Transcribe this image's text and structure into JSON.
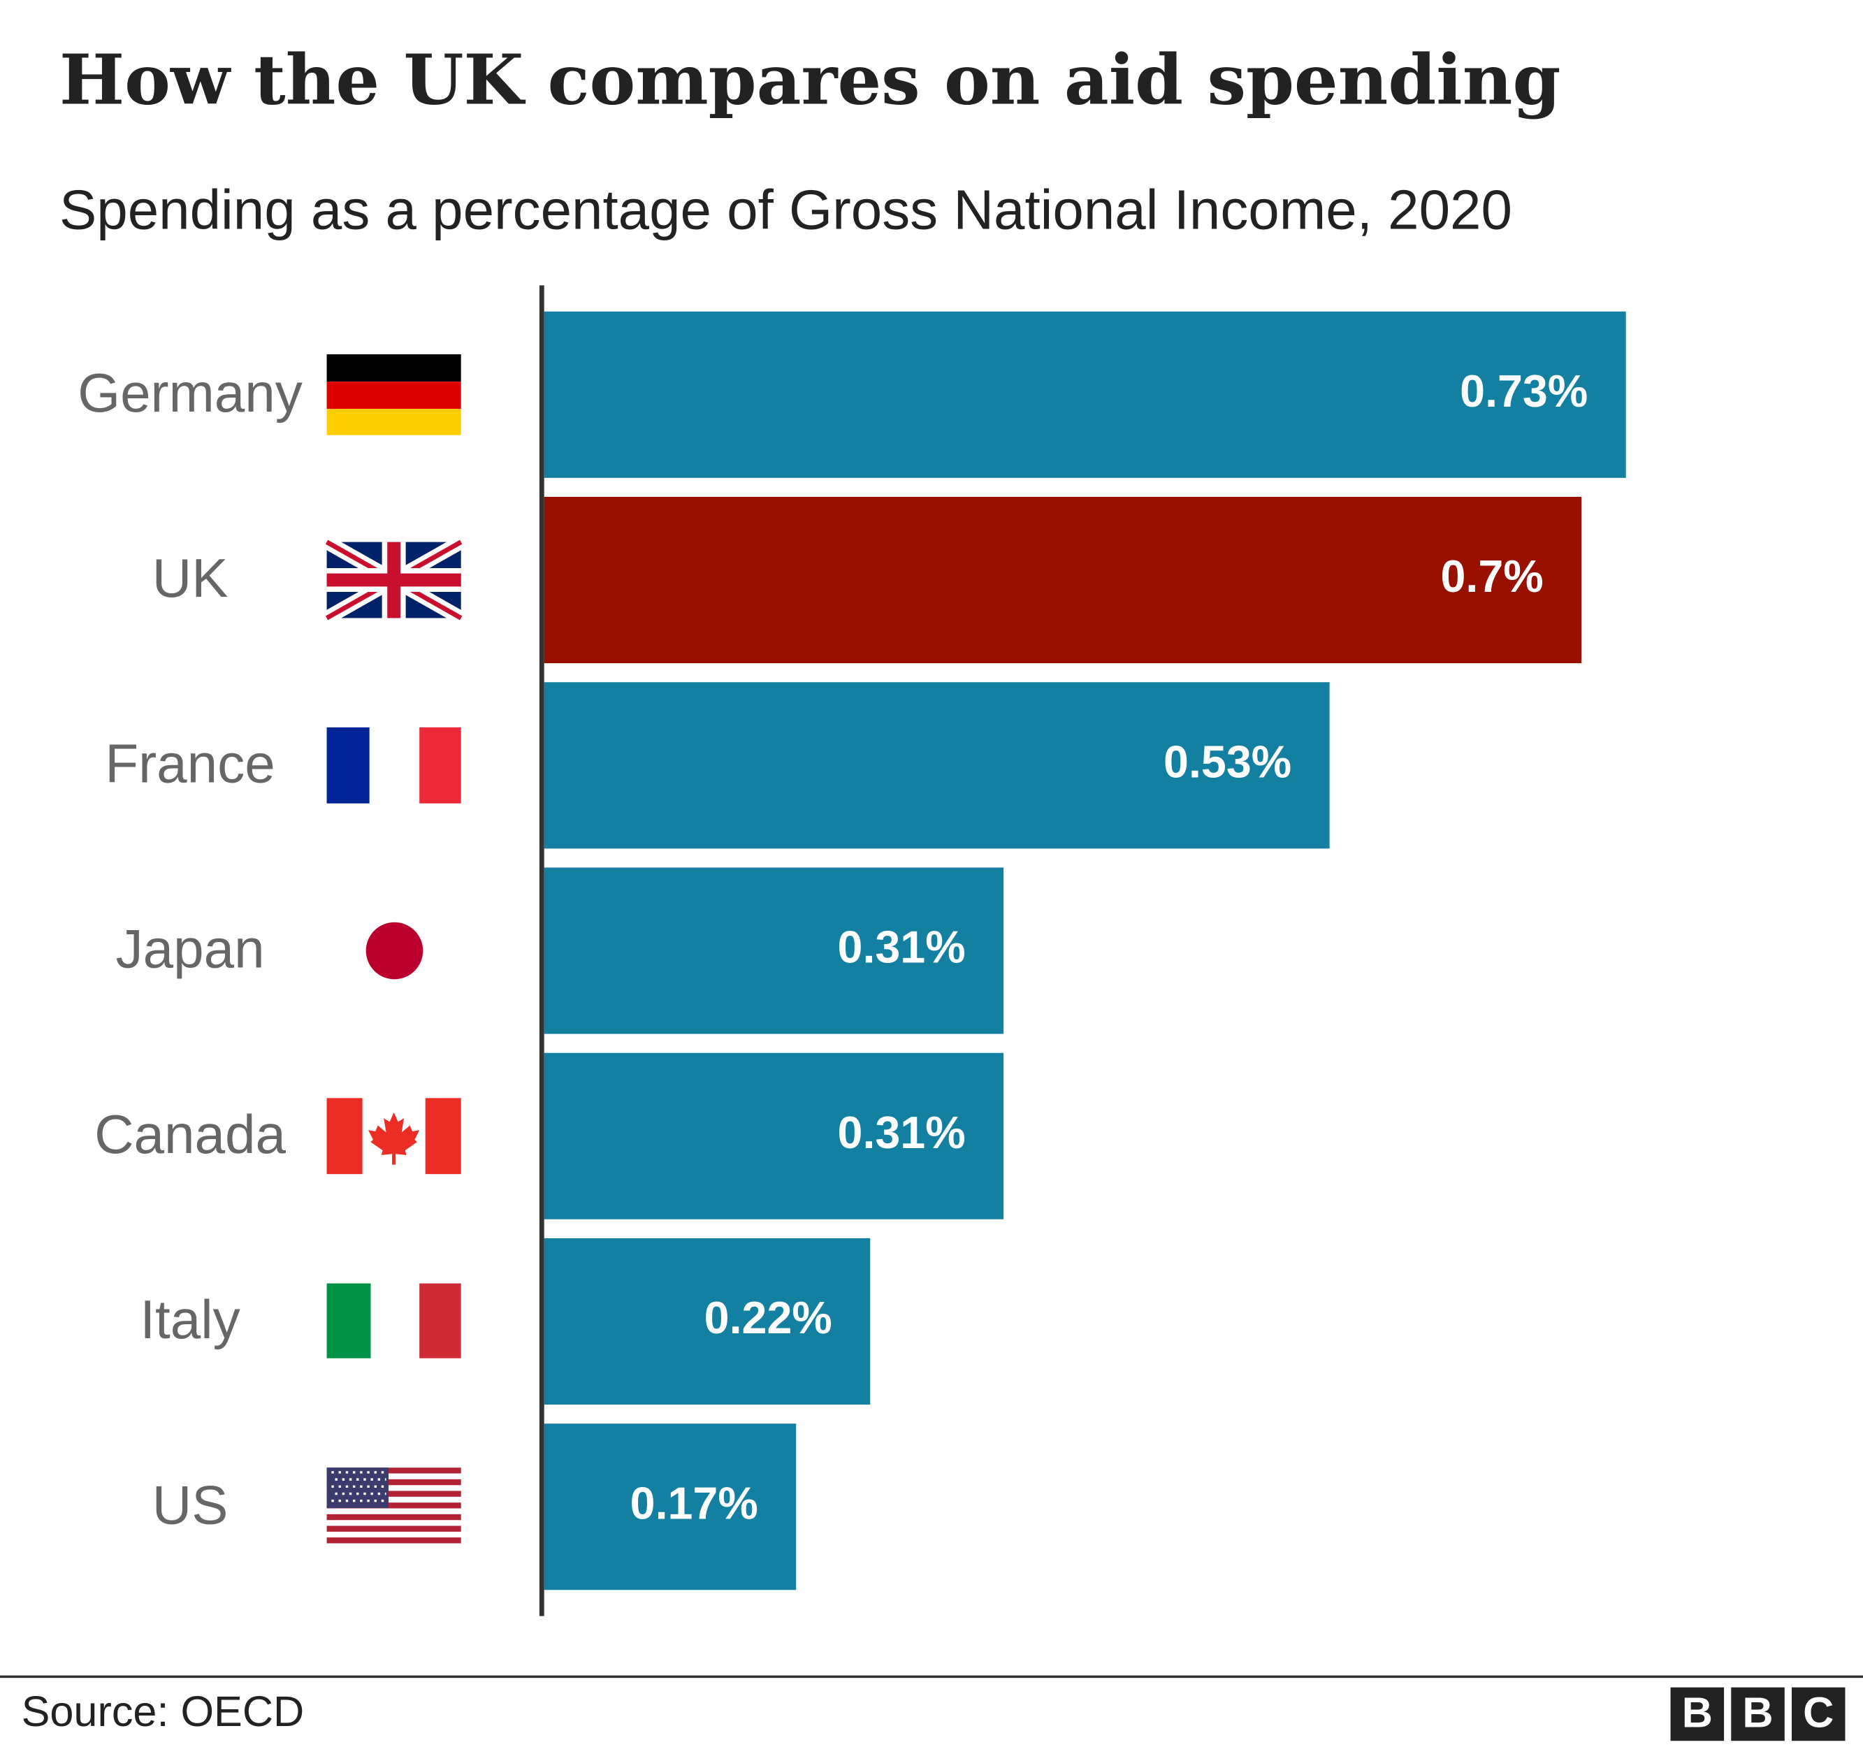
{
  "chart_data": {
    "type": "hbar",
    "title": "How the UK compares on aid spending",
    "subtitle": "Spending as a percentage of Gross National Income, 2020",
    "categories": [
      "Germany",
      "UK",
      "France",
      "Japan",
      "Canada",
      "Italy",
      "US"
    ],
    "values": [
      0.73,
      0.7,
      0.53,
      0.31,
      0.31,
      0.22,
      0.17
    ],
    "value_labels": [
      "0.73%",
      "0.7%",
      "0.53%",
      "0.31%",
      "0.31%",
      "0.22%",
      "0.17%"
    ],
    "colors": [
      "#1380a1",
      "#990f00",
      "#1380a1",
      "#1380a1",
      "#1380a1",
      "#1380a1",
      "#1380a1"
    ],
    "xlim": [
      0,
      0.89
    ],
    "source": "Source: OECD",
    "logo": [
      "B",
      "B",
      "C"
    ]
  }
}
